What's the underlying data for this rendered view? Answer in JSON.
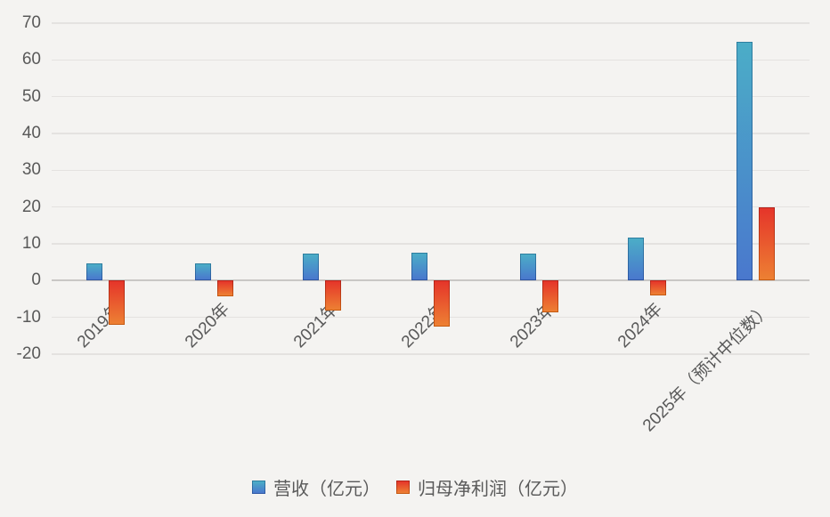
{
  "chart_data": {
    "type": "bar",
    "title": "",
    "xlabel": "",
    "ylabel": "",
    "categories": [
      "2019年",
      "2020年",
      "2021年",
      "2022年",
      "2023年",
      "2024年",
      "2025年（预计中位数）"
    ],
    "series": [
      {
        "name": "营收（亿元）",
        "values": [
          4.6,
          4.6,
          7.3,
          7.6,
          7.3,
          11.8,
          65
        ],
        "fill_top": "#4badc7",
        "fill_bottom": "#4a78cd",
        "border_top": "#2e7fa0",
        "border_bottom": "#2e56a4"
      },
      {
        "name": "归母净利润（亿元）",
        "values": [
          -12,
          -4.3,
          -8.2,
          -12.5,
          -8.7,
          -4.1,
          20
        ],
        "fill_top": "#e5352a",
        "fill_bottom": "#ed8033",
        "border_top": "#b2211a",
        "border_bottom": "#c55a11"
      }
    ],
    "ylim": [
      -20,
      70
    ],
    "yticks": [
      70,
      60,
      50,
      40,
      30,
      20,
      10,
      0,
      -10,
      -20
    ],
    "grid": true,
    "legend_position": "bottom"
  },
  "colors": {
    "background": "#f4f3f1",
    "gridline": "#e4e2e0",
    "zero_line": "#c9c7c5",
    "axis_text": "#595959"
  }
}
